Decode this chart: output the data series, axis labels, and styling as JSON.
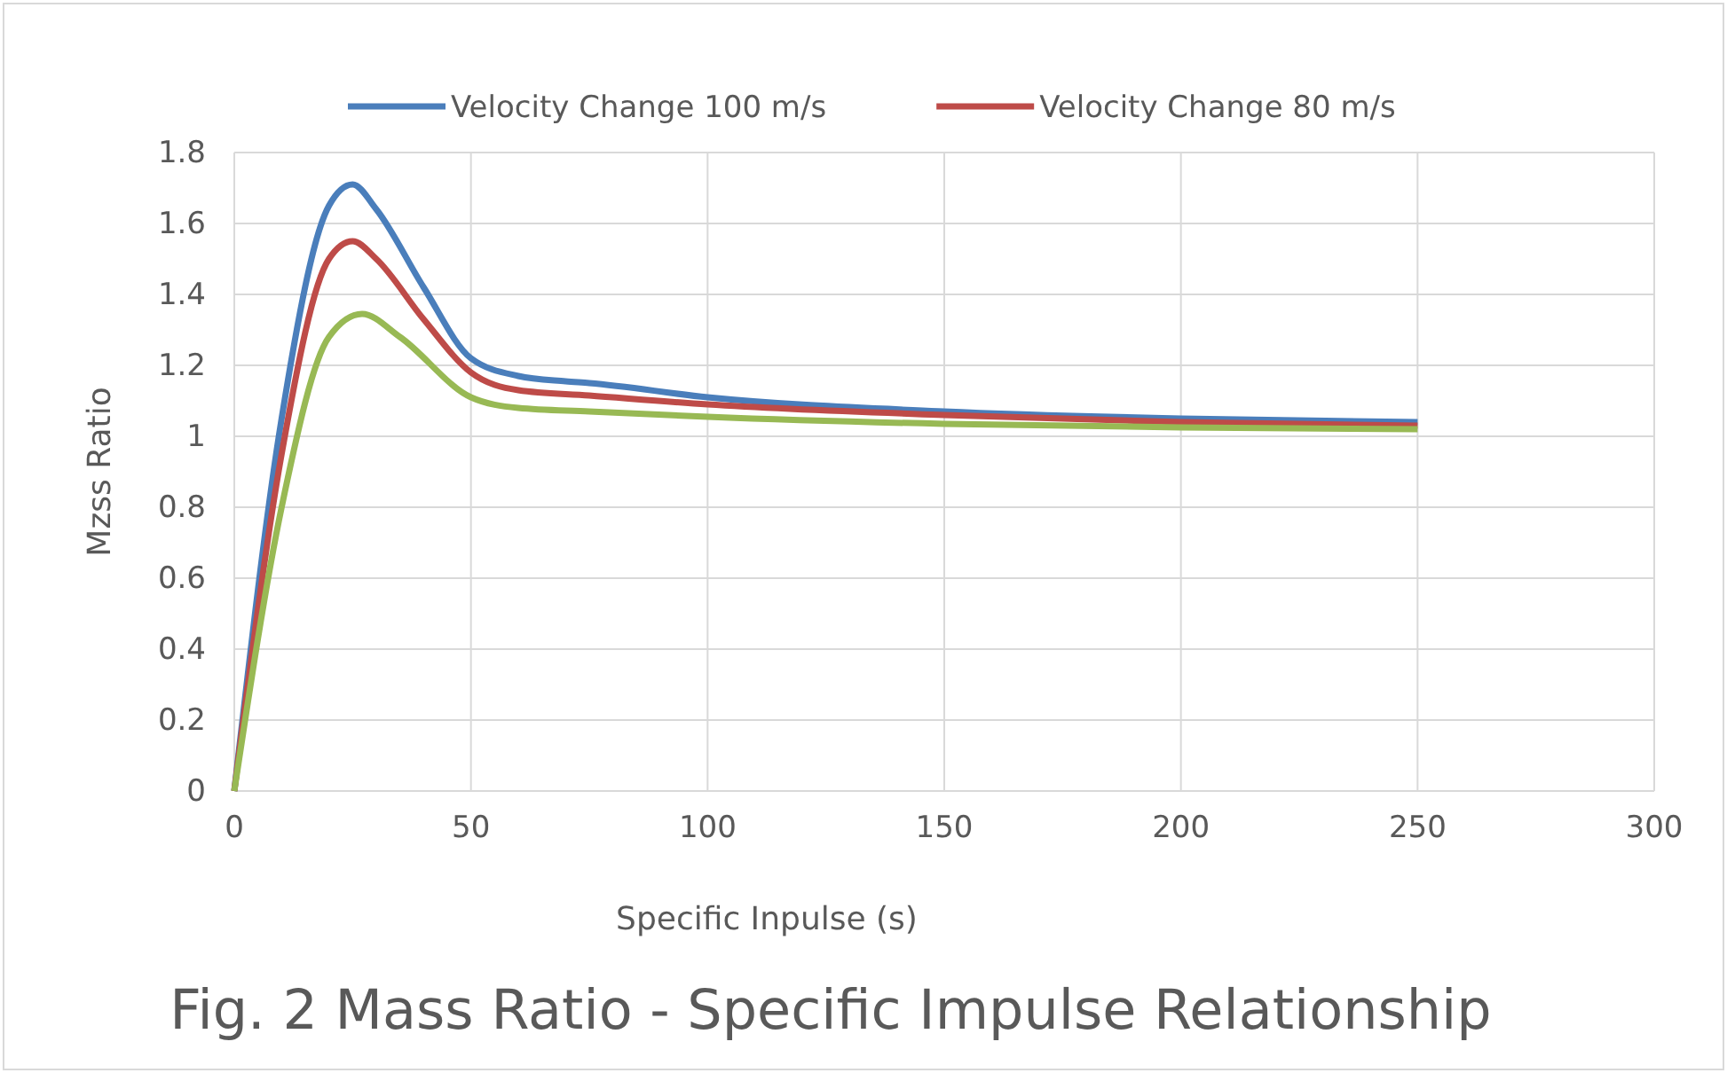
{
  "chart_data": {
    "type": "line",
    "title": "Fig. 2 Mass Ratio - Specific Impulse Relationship",
    "xlabel": "Specific Inpulse (s)",
    "ylabel": "Mzss Ratio",
    "xlim": [
      0,
      300
    ],
    "xticks": [
      0,
      50,
      100,
      150,
      200,
      250,
      300
    ],
    "ylim": [
      0,
      1.8
    ],
    "yticks": [
      0,
      {
        "value": 0.2,
        "label": "0.2"
      },
      {
        "value": 0.4,
        "label": "0.4"
      },
      {
        "value": 0.6,
        "label": "0.6"
      },
      {
        "value": 0.8,
        "label": "0.8"
      },
      1,
      {
        "value": 1.2,
        "label": "1.2"
      },
      {
        "value": 1.4,
        "label": "1.4"
      },
      {
        "value": 1.6,
        "label": "1.6"
      },
      {
        "value": 1.8,
        "label": "1.8"
      }
    ],
    "grid": true,
    "legend": "top",
    "line_style": "solid",
    "marker": "none",
    "series": [
      {
        "name": "Velocity Change 100 m/s",
        "color": "#4a7ebb",
        "x": [
          0,
          10,
          20,
          25,
          30,
          40,
          50,
          60,
          70,
          75,
          100,
          150,
          200,
          250
        ],
        "values": [
          0,
          1.05,
          1.65,
          1.71,
          1.64,
          1.42,
          1.22,
          1.17,
          1.155,
          1.15,
          1.11,
          1.07,
          1.05,
          1.04
        ]
      },
      {
        "name": "Velocity Change 80 m/s",
        "color": "#be4b48",
        "x": [
          0,
          10,
          20,
          25,
          30,
          40,
          50,
          60,
          75,
          100,
          150,
          200,
          250
        ],
        "values": [
          0,
          0.95,
          1.5,
          1.55,
          1.5,
          1.33,
          1.18,
          1.13,
          1.115,
          1.09,
          1.06,
          1.04,
          1.03
        ]
      },
      {
        "color": "#98b954",
        "x": [
          0,
          10,
          20,
          27,
          35,
          50,
          60,
          75,
          100,
          150,
          200,
          250
        ],
        "values": [
          0,
          0.8,
          1.28,
          1.345,
          1.28,
          1.11,
          1.08,
          1.07,
          1.055,
          1.035,
          1.025,
          1.02
        ]
      }
    ]
  }
}
